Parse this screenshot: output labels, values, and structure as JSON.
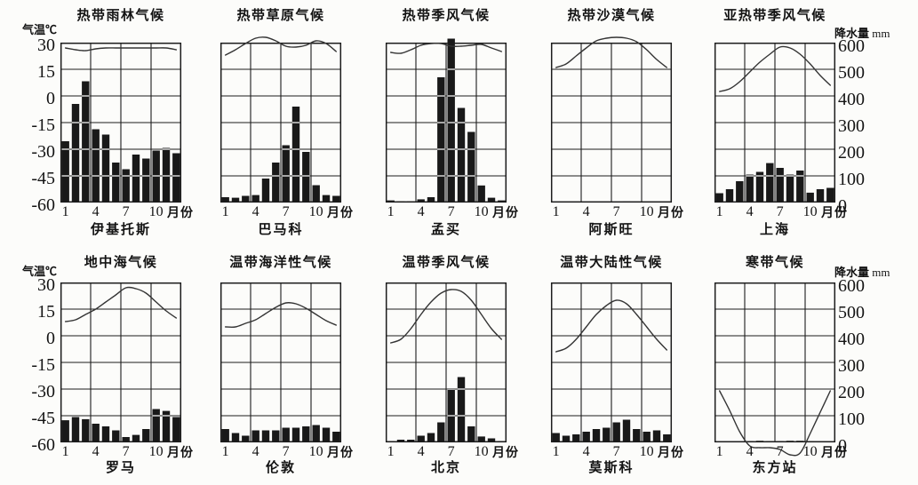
{
  "figure": {
    "temp_axis_label": "气温℃",
    "precip_axis_label": "降水量",
    "precip_axis_unit": "mm",
    "temp_ticks_c": [
      30,
      15,
      0,
      -15,
      -30,
      -45,
      -60
    ],
    "precip_ticks_mm": [
      600,
      500,
      400,
      300,
      200,
      100,
      0
    ],
    "month_tick_labels": [
      "1",
      "4",
      "7",
      "10"
    ],
    "month_tick_positions": [
      1,
      4,
      7,
      10
    ],
    "month_axis_unit": "月份"
  },
  "colors": {
    "background": "#fcfcfa",
    "bar": "#191919",
    "curve": "#343434",
    "frame": "#1c1c1c",
    "grid": "#1c1c1c",
    "grid_through_bar": "#fcfcfa"
  },
  "chart_data": [
    {
      "type": "climograph (bar precipitation + line temperature)",
      "climate": "热带雨林气候",
      "station": "伊基托斯",
      "row": 0,
      "col": 0,
      "temp_axis_visible": true,
      "precip_axis_visible": false,
      "months": [
        1,
        2,
        3,
        4,
        5,
        6,
        7,
        8,
        9,
        10,
        11,
        12
      ],
      "temp_c": [
        27,
        26,
        25.5,
        26.5,
        27,
        27,
        27,
        27,
        27,
        27,
        27,
        26
      ],
      "precip_mm": [
        230,
        370,
        455,
        275,
        255,
        150,
        125,
        180,
        165,
        195,
        205,
        185
      ]
    },
    {
      "type": "climograph (bar precipitation + line temperature)",
      "climate": "热带草原气候",
      "station": "巴马科",
      "row": 0,
      "col": 1,
      "temp_axis_visible": false,
      "precip_axis_visible": false,
      "months": [
        1,
        2,
        3,
        4,
        5,
        6,
        7,
        8,
        9,
        10,
        11,
        12
      ],
      "temp_c": [
        23,
        26,
        29.5,
        32.5,
        33,
        31,
        28,
        27.5,
        28.5,
        31,
        29.5,
        25
      ],
      "precip_mm": [
        20,
        18,
        25,
        28,
        90,
        150,
        215,
        360,
        190,
        65,
        28,
        25
      ]
    },
    {
      "type": "climograph (bar precipitation + line temperature)",
      "climate": "热带季风气候",
      "station": "孟买",
      "row": 0,
      "col": 2,
      "temp_axis_visible": false,
      "precip_axis_visible": false,
      "months": [
        1,
        2,
        3,
        4,
        5,
        6,
        7,
        8,
        9,
        10,
        11,
        12
      ],
      "temp_c": [
        24.5,
        24,
        26,
        28.5,
        29.5,
        29.5,
        28,
        28,
        28.5,
        29,
        27,
        25
      ],
      "precip_mm": [
        8,
        5,
        5,
        12,
        20,
        470,
        615,
        355,
        265,
        64,
        18,
        8
      ]
    },
    {
      "type": "climograph (bar precipitation + line temperature)",
      "climate": "热带沙漠气候",
      "station": "阿斯旺",
      "row": 0,
      "col": 3,
      "temp_axis_visible": false,
      "precip_axis_visible": false,
      "months": [
        1,
        2,
        3,
        4,
        5,
        6,
        7,
        8,
        9,
        10,
        11,
        12
      ],
      "temp_c": [
        16,
        18,
        22.5,
        27,
        31,
        32.5,
        33,
        32.5,
        30.5,
        26,
        20.5,
        16
      ],
      "precip_mm": [
        0,
        0,
        0,
        0,
        0,
        0,
        0,
        4,
        0,
        3,
        0,
        0
      ]
    },
    {
      "type": "climograph (bar precipitation + line temperature)",
      "climate": "亚热带季风气候",
      "station": "上海",
      "row": 0,
      "col": 4,
      "temp_axis_visible": false,
      "precip_axis_visible": true,
      "months": [
        1,
        2,
        3,
        4,
        5,
        6,
        7,
        8,
        9,
        10,
        11,
        12
      ],
      "temp_c": [
        2.5,
        4,
        8,
        13.5,
        19,
        23.5,
        27.5,
        27,
        23.5,
        18,
        11.5,
        6
      ],
      "precip_mm": [
        35,
        50,
        80,
        105,
        115,
        148,
        130,
        105,
        120,
        37,
        50,
        55
      ]
    },
    {
      "type": "climograph (bar precipitation + line temperature)",
      "climate": "地中海气候",
      "station": "罗马",
      "row": 1,
      "col": 0,
      "temp_axis_visible": true,
      "precip_axis_visible": false,
      "months": [
        1,
        2,
        3,
        4,
        5,
        6,
        7,
        8,
        9,
        10,
        11,
        12
      ],
      "temp_c": [
        8,
        9,
        12,
        15,
        19,
        23,
        27,
        26.5,
        24,
        19,
        14,
        10
      ],
      "precip_mm": [
        83,
        95,
        87,
        70,
        60,
        45,
        20,
        28,
        50,
        125,
        118,
        95
      ]
    },
    {
      "type": "climograph (bar precipitation + line temperature)",
      "climate": "温带海洋性气候",
      "station": "伦敦",
      "row": 1,
      "col": 1,
      "temp_axis_visible": false,
      "precip_axis_visible": false,
      "months": [
        1,
        2,
        3,
        4,
        5,
        6,
        7,
        8,
        9,
        10,
        11,
        12
      ],
      "temp_c": [
        5,
        5,
        7,
        9,
        12.5,
        16,
        18.5,
        18,
        15.5,
        12,
        8.5,
        6
      ],
      "precip_mm": [
        50,
        35,
        25,
        45,
        45,
        45,
        55,
        55,
        60,
        65,
        55,
        40
      ]
    },
    {
      "type": "climograph (bar precipitation + line temperature)",
      "climate": "温带季风气候",
      "station": "北京",
      "row": 1,
      "col": 2,
      "temp_axis_visible": false,
      "precip_axis_visible": false,
      "months": [
        1,
        2,
        3,
        4,
        5,
        6,
        7,
        8,
        9,
        10,
        11,
        12
      ],
      "temp_c": [
        -4,
        -2,
        4,
        12,
        19,
        24,
        26,
        25,
        20,
        12,
        4,
        -2
      ],
      "precip_mm": [
        5,
        10,
        10,
        25,
        35,
        75,
        200,
        245,
        60,
        22,
        15,
        5
      ]
    },
    {
      "type": "climograph (bar precipitation + line temperature)",
      "climate": "温带大陆性气候",
      "station": "莫斯科",
      "row": 1,
      "col": 3,
      "temp_axis_visible": false,
      "precip_axis_visible": false,
      "months": [
        1,
        2,
        3,
        4,
        5,
        6,
        7,
        8,
        9,
        10,
        11,
        12
      ],
      "temp_c": [
        -9,
        -7,
        -2,
        5,
        12,
        17,
        20,
        18,
        12,
        5,
        -2,
        -8
      ],
      "precip_mm": [
        35,
        25,
        30,
        40,
        50,
        55,
        75,
        85,
        50,
        40,
        45,
        30
      ]
    },
    {
      "type": "climograph (bar precipitation + line temperature)",
      "climate": "寒带气候",
      "station": "东方站",
      "row": 1,
      "col": 4,
      "temp_axis_visible": false,
      "precip_axis_visible": true,
      "months": [
        1,
        2,
        3,
        4,
        5,
        6,
        7,
        8,
        9,
        10,
        11,
        12
      ],
      "temp_c": [
        -31,
        -42,
        -54,
        -62,
        -63,
        -63,
        -64,
        -67,
        -66,
        -55,
        -43,
        -31
      ],
      "precip_mm": [
        0,
        0,
        0,
        5,
        6,
        5,
        5,
        6,
        6,
        4,
        0,
        0
      ]
    }
  ],
  "layout_note": "10 climographs, 2 rows x 5 cols; left axis temperature 30..-60 C, right axis precipitation 600..0 mm, x axis months 1-12"
}
